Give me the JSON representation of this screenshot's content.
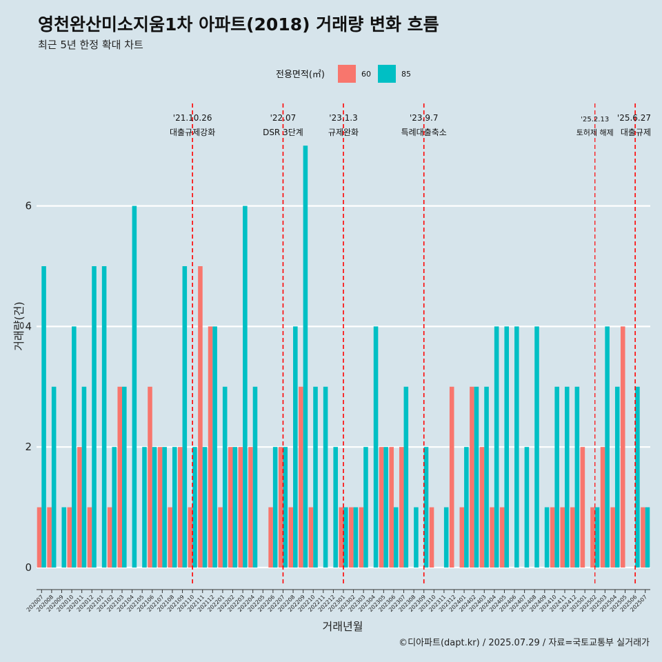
{
  "chart_data": {
    "type": "bar",
    "title": "영천완산미소지움1차 아파트(2018) 거래량 변화 흐름",
    "subtitle": "최근 5년 한정 확대 차트",
    "xlabel": "거래년월",
    "ylabel": "거래량(건)",
    "ylim": [
      0,
      7
    ],
    "yticks": [
      0,
      2,
      4,
      6
    ],
    "legend": {
      "title": "전용면적(㎡)",
      "position": "top",
      "entries": [
        {
          "label": "60",
          "color": "#f8766d"
        },
        {
          "label": "85",
          "color": "#00bfc4"
        }
      ]
    },
    "categories": [
      "202007",
      "202008",
      "202009",
      "202010",
      "202011",
      "202012",
      "202101",
      "202102",
      "202103",
      "202104",
      "202105",
      "202106",
      "202107",
      "202108",
      "202109",
      "202110",
      "202111",
      "202112",
      "202201",
      "202202",
      "202203",
      "202204",
      "202205",
      "202206",
      "202207",
      "202208",
      "202209",
      "202210",
      "202211",
      "202212",
      "202301",
      "202302",
      "202303",
      "202304",
      "202305",
      "202306",
      "202307",
      "202308",
      "202309",
      "202310",
      "202311",
      "202312",
      "202401",
      "202402",
      "202403",
      "202404",
      "202405",
      "202406",
      "202407",
      "202408",
      "202409",
      "202410",
      "202411",
      "202412",
      "202501",
      "202502",
      "202503",
      "202504",
      "202505",
      "202506",
      "202507"
    ],
    "series": [
      {
        "name": "60",
        "color": "#f8766d",
        "values": [
          1,
          1,
          0,
          1,
          2,
          1,
          0,
          1,
          3,
          0,
          0,
          3,
          2,
          1,
          2,
          1,
          5,
          4,
          1,
          2,
          2,
          2,
          0,
          1,
          2,
          1,
          3,
          1,
          0,
          0,
          1,
          1,
          1,
          0,
          2,
          2,
          2,
          0,
          0,
          1,
          0,
          3,
          1,
          3,
          2,
          1,
          1,
          0,
          0,
          0,
          0,
          1,
          1,
          1,
          2,
          1,
          2,
          1,
          4,
          0,
          1
        ]
      },
      {
        "name": "85",
        "color": "#00bfc4",
        "values": [
          5,
          3,
          1,
          4,
          3,
          5,
          5,
          2,
          3,
          6,
          2,
          2,
          2,
          2,
          5,
          2,
          2,
          4,
          3,
          2,
          6,
          3,
          0,
          2,
          2,
          4,
          7,
          3,
          3,
          2,
          1,
          1,
          2,
          4,
          2,
          1,
          3,
          1,
          2,
          0,
          1,
          0,
          2,
          3,
          3,
          4,
          4,
          4,
          2,
          4,
          1,
          3,
          3,
          3,
          0,
          1,
          4,
          3,
          0,
          3,
          1
        ]
      }
    ],
    "events": [
      {
        "date": "'21.10.26",
        "desc": "대출규제강화",
        "month": "202110"
      },
      {
        "date": "'22.07",
        "desc": "DSR 3단계",
        "month": "202207"
      },
      {
        "date": "'23.1.3",
        "desc": "규제완화",
        "month": "202301"
      },
      {
        "date": "'23.9.7",
        "desc": "특례대출축소",
        "month": "202309"
      },
      {
        "date": "'25.2.13",
        "desc": "토허제 해제",
        "month": "202502"
      },
      {
        "date": "'25.6.27",
        "desc": "대출규제",
        "month": "202506"
      }
    ],
    "event_line_color": "#ff0000",
    "caption": "©디아파트(dapt.kr) / 2025.07.29 / 자료=국토교통부 실거래가",
    "grid": true
  }
}
